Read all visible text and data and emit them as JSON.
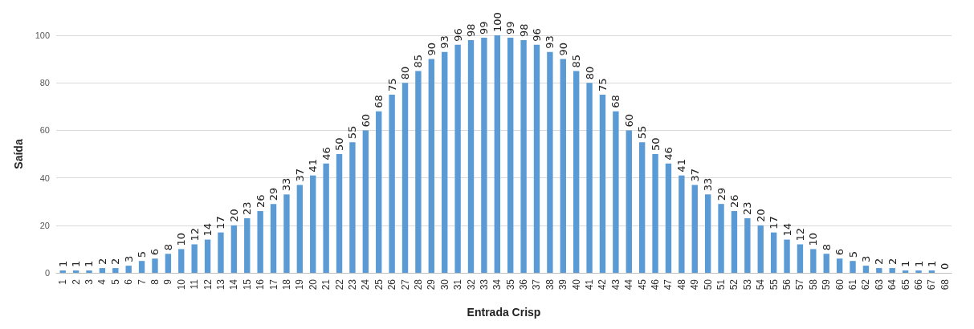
{
  "chart_data": {
    "type": "bar",
    "xlabel": "Entrada Crisp",
    "ylabel": "Saída",
    "categories": [
      "1",
      "2",
      "3",
      "4",
      "5",
      "6",
      "7",
      "8",
      "9",
      "10",
      "11",
      "12",
      "13",
      "14",
      "15",
      "16",
      "17",
      "18",
      "19",
      "20",
      "21",
      "22",
      "23",
      "24",
      "25",
      "26",
      "27",
      "28",
      "29",
      "30",
      "31",
      "32",
      "33",
      "34",
      "35",
      "36",
      "37",
      "38",
      "39",
      "40",
      "41",
      "42",
      "43",
      "44",
      "45",
      "46",
      "47",
      "48",
      "49",
      "50",
      "51",
      "52",
      "53",
      "54",
      "55",
      "56",
      "57",
      "58",
      "59",
      "60",
      "61",
      "62",
      "63",
      "64",
      "65",
      "66",
      "67",
      "68"
    ],
    "values": [
      1,
      1,
      1,
      2,
      2,
      3,
      5,
      6,
      8,
      10,
      12,
      14,
      17,
      20,
      23,
      26,
      29,
      33,
      37,
      41,
      46,
      50,
      55,
      60,
      68,
      75,
      80,
      85,
      90,
      93,
      96,
      98,
      99,
      100,
      99,
      98,
      96,
      93,
      90,
      85,
      80,
      75,
      68,
      60,
      55,
      50,
      46,
      41,
      37,
      33,
      29,
      26,
      23,
      20,
      17,
      14,
      12,
      10,
      8,
      6,
      5,
      3,
      2,
      2,
      1,
      1,
      1,
      0
    ],
    "color": "#5b9bd5",
    "ylim": [
      0,
      100
    ],
    "yticks": [
      0,
      20,
      40,
      60,
      80,
      100
    ],
    "grid": "y",
    "data_labels": true
  }
}
